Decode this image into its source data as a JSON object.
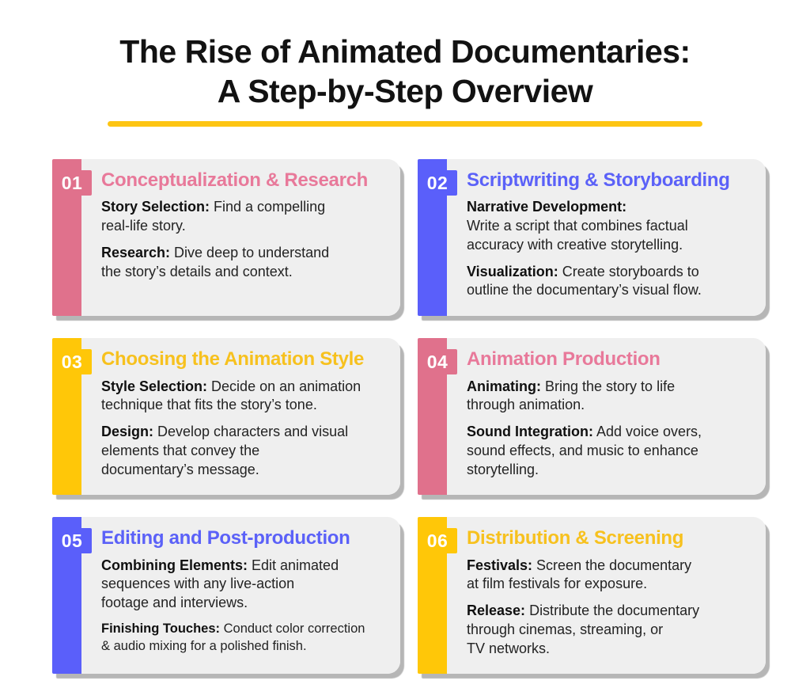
{
  "header": {
    "title_line1": "The Rise of Animated Documentaries:",
    "title_line2": "A Step-by-Step Overview",
    "underline_color": "#FDC513"
  },
  "card_style": {
    "background": "#EFEFEF",
    "shadow": "#B6B6B6",
    "number_text_color": "#FFFFFF"
  },
  "palette": {
    "pink": {
      "bar": "#E0718C",
      "title": "#E8799A"
    },
    "blue": {
      "bar": "#5A5FFA",
      "title": "#5B61F8"
    },
    "yellow": {
      "bar": "#FFC708",
      "title": "#F7C11E"
    }
  },
  "cards": [
    {
      "number": "01",
      "color": "pink",
      "title": "Conceptualization & Research",
      "items": [
        {
          "label": "Story Selection:",
          "text": "Find a compelling\nreal-life story.",
          "label_break": false,
          "small": false
        },
        {
          "label": "Research:",
          "text": "Dive deep to understand\nthe story’s details and context.",
          "label_break": false,
          "small": false
        }
      ]
    },
    {
      "number": "02",
      "color": "blue",
      "title": "Scriptwriting & Storyboarding",
      "items": [
        {
          "label": "Narrative Development:",
          "text": "Write a script that combines factual\naccuracy with creative storytelling.",
          "label_break": true,
          "small": false
        },
        {
          "label": "Visualization:",
          "text": "Create storyboards to\noutline the documentary’s visual flow.",
          "label_break": false,
          "small": false
        }
      ]
    },
    {
      "number": "03",
      "color": "yellow",
      "title": "Choosing the Animation Style",
      "items": [
        {
          "label": "Style Selection:",
          "text": "Decide on an animation\ntechnique that fits the story’s tone.",
          "label_break": false,
          "small": false
        },
        {
          "label": "Design:",
          "text": "Develop characters and visual\nelements that convey the\ndocumentary’s message.",
          "label_break": false,
          "small": false
        }
      ]
    },
    {
      "number": "04",
      "color": "pink",
      "title": "Animation Production",
      "items": [
        {
          "label": "Animating:",
          "text": "Bring the story to life\nthrough animation.",
          "label_break": false,
          "small": false
        },
        {
          "label": "Sound Integration:",
          "text": "Add voice overs,\nsound effects, and music to enhance\nstorytelling.",
          "label_break": false,
          "small": false
        }
      ]
    },
    {
      "number": "05",
      "color": "blue",
      "title": "Editing and Post-production",
      "items": [
        {
          "label": "Combining Elements:",
          "text": "Edit animated\nsequences with any live-action\nfootage and interviews.",
          "label_break": false,
          "small": false
        },
        {
          "label": "Finishing Touches:",
          "text": "Conduct color correction\n& audio mixing for a polished finish.",
          "label_break": false,
          "small": true
        }
      ]
    },
    {
      "number": "06",
      "color": "yellow",
      "title": "Distribution & Screening",
      "items": [
        {
          "label": "Festivals:",
          "text": "Screen the documentary\nat film festivals for exposure.",
          "label_break": false,
          "small": false
        },
        {
          "label": "Release:",
          "text": "Distribute the documentary\nthrough cinemas, streaming, or\nTV networks.",
          "label_break": false,
          "small": false
        }
      ]
    }
  ]
}
